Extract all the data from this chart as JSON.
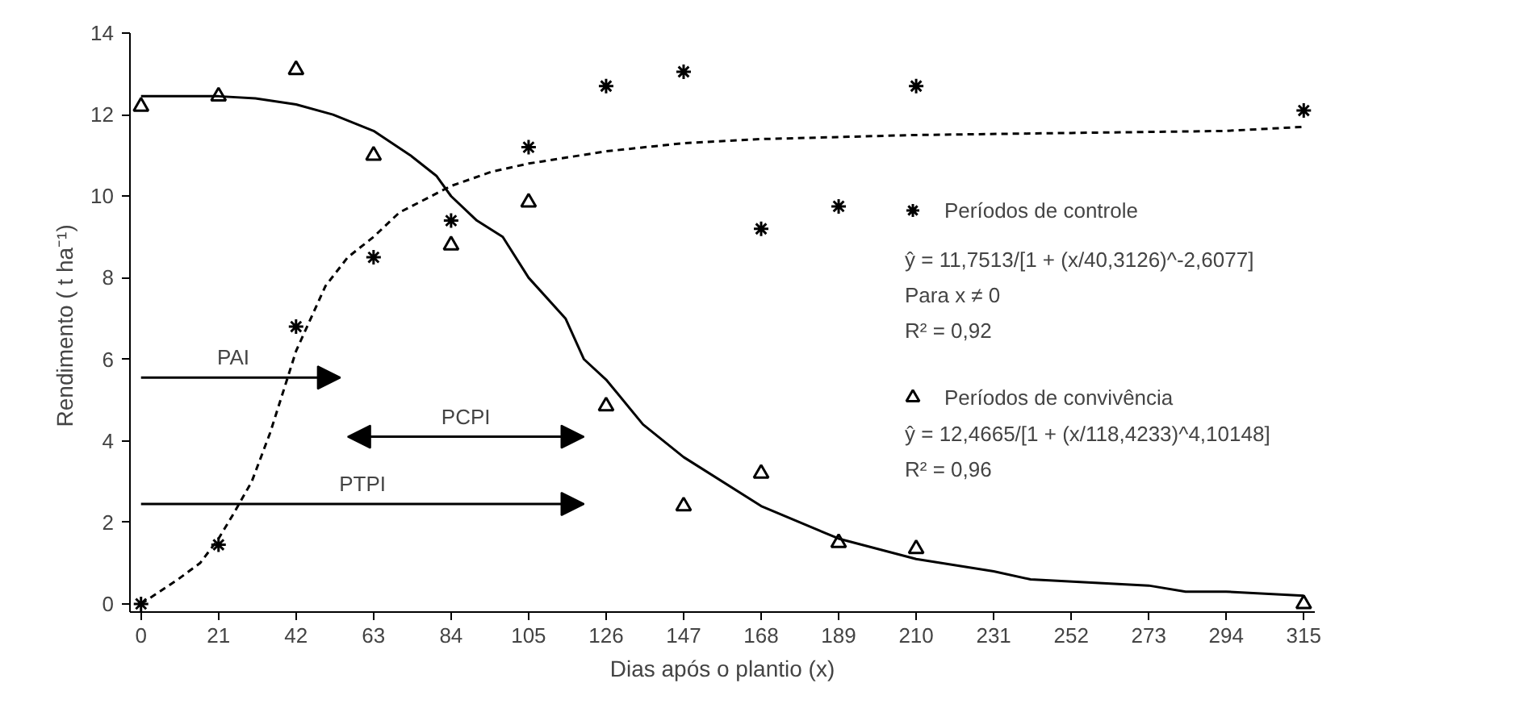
{
  "chart_data": {
    "type": "scatter",
    "xlabel": "Dias após o plantio (x)",
    "ylabel": "Rendimento  ( t ha⁻¹)",
    "xlim": [
      -3,
      318
    ],
    "xticks": [
      0,
      21,
      42,
      63,
      84,
      105,
      126,
      147,
      168,
      189,
      210,
      231,
      252,
      273,
      294,
      315
    ],
    "ylim": [
      -0.2,
      14
    ],
    "yticks": [
      0,
      2,
      4,
      6,
      8,
      10,
      12,
      14
    ],
    "grid": false,
    "legend": "right",
    "series": [
      {
        "name": "Períodos de controle",
        "marker": "cross",
        "color": "#000000",
        "x": [
          0,
          21,
          42,
          63,
          84,
          105,
          126,
          147,
          168,
          189,
          210,
          315
        ],
        "values": [
          0,
          1.45,
          6.8,
          8.5,
          9.4,
          11.2,
          12.7,
          13.05,
          9.2,
          9.75,
          12.7,
          12.1
        ]
      },
      {
        "type": "line",
        "line_style": "dashed",
        "color": "#000000",
        "x": [
          0,
          10,
          16,
          21,
          25,
          30,
          35,
          42,
          50,
          56,
          63,
          70,
          84,
          95,
          105,
          126,
          147,
          168,
          210,
          252,
          294,
          315
        ],
        "values": [
          0,
          0.6,
          1.0,
          1.6,
          2.2,
          3.0,
          4.2,
          6.2,
          7.8,
          8.5,
          9.0,
          9.6,
          10.25,
          10.6,
          10.8,
          11.1,
          11.3,
          11.4,
          11.5,
          11.55,
          11.6,
          11.7
        ]
      },
      {
        "name": "Períodos de convivência",
        "marker": "triangle",
        "color": "#000000",
        "x": [
          0,
          21,
          42,
          63,
          84,
          105,
          126,
          147,
          168,
          189,
          210,
          315
        ],
        "values": [
          12.2,
          12.45,
          13.1,
          11.0,
          8.8,
          9.85,
          4.85,
          2.4,
          3.2,
          1.5,
          1.35,
          0
        ]
      },
      {
        "type": "line",
        "line_style": "solid",
        "color": "#000000",
        "x": [
          0,
          21,
          31,
          42,
          52,
          63,
          73,
          80,
          84,
          91,
          98,
          105,
          115,
          120,
          126,
          136,
          147,
          168,
          189,
          210,
          231,
          241,
          273,
          283,
          294,
          315
        ],
        "values": [
          12.45,
          12.45,
          12.4,
          12.25,
          12.0,
          11.6,
          11.0,
          10.5,
          10.0,
          9.4,
          9.0,
          8.0,
          7.0,
          6.0,
          5.5,
          4.4,
          3.6,
          2.4,
          1.6,
          1.1,
          0.8,
          0.6,
          0.45,
          0.3,
          0.3,
          0.2
        ]
      }
    ],
    "annotations": [
      "PAI",
      "PCPI",
      "PTPI",
      "ŷ = 11,7513/[1 + (x/40,3126)^-2,6077]",
      "Para x ≠ 0",
      "R² = 0,92",
      "ŷ = 12,4665/[1 + (x/118,4233)^4,10148]",
      "R² = 0,96"
    ]
  }
}
